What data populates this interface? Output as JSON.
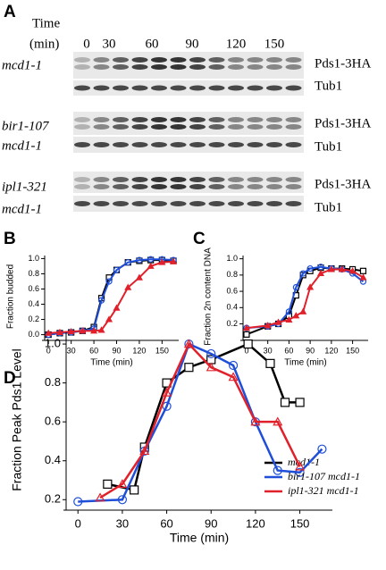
{
  "panel_a": {
    "panel_label": "A",
    "time_label": "Time",
    "unit_label": "(min)",
    "time_ticks": [
      "0",
      "30",
      "60",
      "90",
      "120",
      "150"
    ],
    "groups": [
      {
        "strain": [
          "mcd1-1"
        ],
        "proteins": [
          "Pds1-3HA",
          "Tub1"
        ]
      },
      {
        "strain": [
          "bir1-107",
          "mcd1-1"
        ],
        "proteins": [
          "Pds1-3HA",
          "Tub1"
        ]
      },
      {
        "strain": [
          "ipl1-321",
          "mcd1-1"
        ],
        "proteins": [
          "Pds1-3HA",
          "Tub1"
        ]
      }
    ]
  },
  "chart_data": [
    {
      "type": "line",
      "panel_label": "B",
      "x_label": "Time (min)",
      "y_label": "Fraction budded",
      "xlim": [
        -5,
        172
      ],
      "ylim": [
        -0.04,
        1.04
      ],
      "xticks": [
        0,
        30,
        60,
        90,
        120,
        150
      ],
      "yticks": [
        {
          "value": 0,
          "label": "0.0"
        },
        0.2,
        0.4,
        0.6,
        0.8,
        {
          "value": 1,
          "label": "1.0"
        }
      ],
      "x": [
        0,
        15,
        30,
        45,
        60,
        70,
        80,
        90,
        105,
        120,
        135,
        150,
        165
      ],
      "series": [
        {
          "name": "mcd1-1",
          "color": "#000000",
          "marker": "square",
          "values": [
            0.0,
            0.02,
            0.03,
            0.05,
            0.1,
            0.48,
            0.75,
            0.85,
            0.95,
            0.97,
            0.98,
            0.98,
            0.97
          ]
        },
        {
          "name": "bir1-107 mcd1-1",
          "color": "#1f4fd8",
          "marker": "circle",
          "values": [
            0.0,
            0.02,
            0.03,
            0.05,
            0.08,
            0.45,
            0.7,
            0.85,
            0.95,
            0.98,
            0.99,
            0.99,
            0.98
          ]
        },
        {
          "name": "ipl1-321 mcd1-1",
          "color": "#e0202a",
          "marker": "triangle",
          "values": [
            0.02,
            0.03,
            0.04,
            0.05,
            0.05,
            0.06,
            0.2,
            0.35,
            0.62,
            0.75,
            0.9,
            0.95,
            0.96
          ]
        }
      ]
    },
    {
      "type": "line",
      "panel_label": "C",
      "x_label": "Time (min)",
      "y_label": "Fraction 2n content DNA",
      "xlim": [
        -5,
        172
      ],
      "ylim": [
        0.03,
        1.04
      ],
      "xticks": [
        0,
        30,
        60,
        90,
        120,
        150
      ],
      "yticks": [
        0.2,
        0.4,
        0.6,
        0.8,
        {
          "value": 1,
          "label": "1.0"
        }
      ],
      "x": [
        0,
        30,
        45,
        60,
        70,
        80,
        90,
        105,
        120,
        135,
        150,
        165
      ],
      "series": [
        {
          "name": "mcd1-1",
          "color": "#000000",
          "marker": "square",
          "values": [
            0.07,
            0.17,
            0.2,
            0.3,
            0.55,
            0.8,
            0.85,
            0.89,
            0.88,
            0.88,
            0.87,
            0.85
          ]
        },
        {
          "name": "bir1-107 mcd1-1",
          "color": "#1f4fd8",
          "marker": "circle",
          "values": [
            0.15,
            0.17,
            0.2,
            0.35,
            0.65,
            0.82,
            0.88,
            0.9,
            0.88,
            0.87,
            0.82,
            0.72
          ]
        },
        {
          "name": "ipl1-321 mcd1-1",
          "color": "#e0202a",
          "marker": "triangle",
          "values": [
            0.15,
            0.18,
            0.22,
            0.25,
            0.3,
            0.35,
            0.65,
            0.82,
            0.87,
            0.87,
            0.85,
            0.77
          ]
        }
      ]
    },
    {
      "type": "line",
      "panel_label": "D",
      "x_label": "Time (min)",
      "y_label": "Fraction Peak Pds1 Level",
      "xlim": [
        -8,
        172
      ],
      "ylim": [
        0.16,
        1.06
      ],
      "xticks": [
        0,
        30,
        60,
        90,
        120,
        150
      ],
      "yticks": [
        0.2,
        0.4,
        0.6,
        0.8,
        {
          "value": 1,
          "label": "1.0"
        }
      ],
      "x": [
        0,
        15,
        20,
        30,
        38,
        45,
        60,
        75,
        90,
        105,
        115,
        120,
        130,
        135,
        140,
        150,
        165
      ],
      "series": [
        {
          "name": "mcd1-1",
          "color": "#000000",
          "marker": "square",
          "values": [
            null,
            null,
            0.28,
            null,
            0.25,
            0.47,
            0.8,
            0.88,
            0.92,
            null,
            1.0,
            null,
            0.9,
            null,
            0.7,
            0.7,
            null
          ]
        },
        {
          "name": "bir1-107 mcd1-1",
          "color": "#1f4fd8",
          "marker": "circle",
          "values": [
            0.19,
            null,
            null,
            0.2,
            null,
            0.45,
            0.68,
            1.0,
            0.95,
            0.89,
            null,
            0.6,
            null,
            0.35,
            null,
            0.34,
            0.46
          ]
        },
        {
          "name": "ipl1-321 mcd1-1",
          "color": "#e0202a",
          "marker": "triangle",
          "values": [
            null,
            0.21,
            null,
            0.28,
            null,
            0.45,
            0.75,
            1.0,
            0.88,
            0.83,
            null,
            0.6,
            null,
            0.6,
            null,
            0.37,
            null
          ]
        }
      ]
    }
  ]
}
